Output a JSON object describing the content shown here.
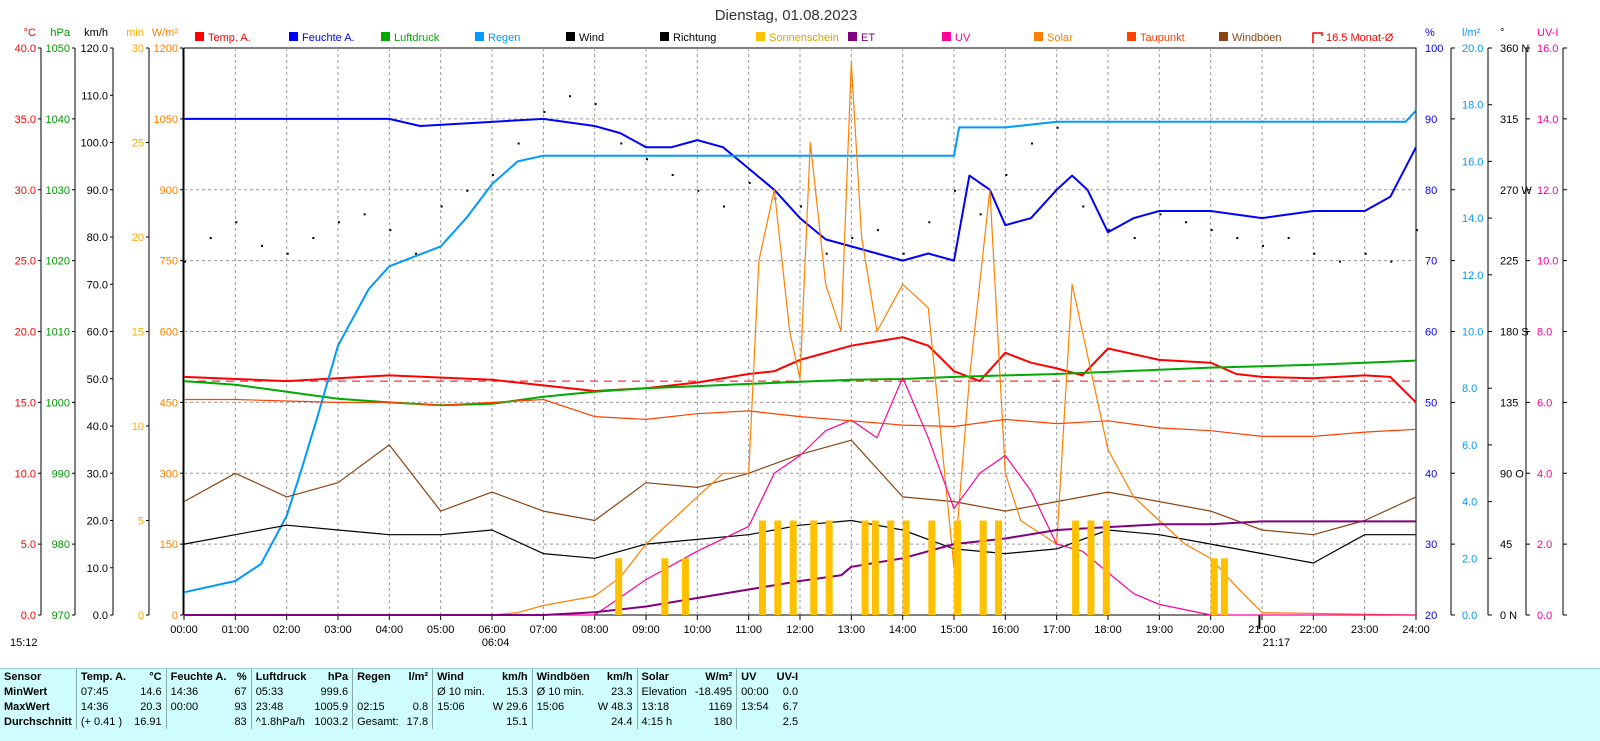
{
  "chart_data": {
    "type": "line",
    "title": "Dienstag, 01.08.2023",
    "axes": {
      "temp": {
        "unit": "°C",
        "ticks": [
          "40.0",
          "35.0",
          "30.0",
          "25.0",
          "20.0",
          "15.0",
          "10.0",
          "5.0",
          "0.0"
        ],
        "color": "#ff0000",
        "range": [
          0,
          40
        ]
      },
      "pressure": {
        "unit": "hPa",
        "ticks": [
          "1050",
          "1040",
          "1030",
          "1020",
          "1010",
          "1000",
          "990",
          "980",
          "970"
        ],
        "color": "#009900",
        "range": [
          970,
          1050
        ]
      },
      "wind": {
        "unit": "km/h",
        "ticks": [
          "120.0",
          "110.0",
          "100.0",
          "90.0",
          "80.0",
          "70.0",
          "60.0",
          "50.0",
          "40.0",
          "30.0",
          "20.0",
          "10.0",
          "0.0"
        ],
        "color": "#000000",
        "range": [
          0,
          120
        ]
      },
      "sunshine": {
        "unit": "min",
        "ticks": [
          "30",
          "25",
          "20",
          "15",
          "10",
          "5",
          "0"
        ],
        "color": "#ffaa00",
        "range": [
          0,
          30
        ]
      },
      "solar": {
        "unit": "W/m²",
        "ticks": [
          "1200",
          "1050",
          "900",
          "750",
          "600",
          "450",
          "300",
          "150",
          "0"
        ],
        "color": "#ff8000",
        "range": [
          0,
          1200
        ]
      },
      "humidity": {
        "unit": "%",
        "ticks": [
          "100",
          "90",
          "80",
          "70",
          "60",
          "50",
          "40",
          "30",
          "20"
        ],
        "color": "#0000ff",
        "range": [
          20,
          100
        ]
      },
      "rain": {
        "unit": "l/m²",
        "ticks": [
          "20.0",
          "18.0",
          "16.0",
          "14.0",
          "12.0",
          "10.0",
          "8.0",
          "6.0",
          "4.0",
          "2.0",
          "0.0"
        ],
        "color": "#0099ff",
        "range": [
          0,
          20
        ]
      },
      "direction": {
        "unit": "°",
        "ticks": [
          "360 N",
          "315",
          "270 W",
          "225",
          "180 S",
          "135",
          "90 O",
          "45",
          "0 N"
        ],
        "color": "#000000",
        "range": [
          0,
          360
        ]
      },
      "uv": {
        "unit": "UV-I",
        "ticks": [
          "16.0",
          "14.0",
          "12.0",
          "10.0",
          "8.0",
          "6.0",
          "4.0",
          "2.0",
          "0.0"
        ],
        "color": "#ff0099",
        "range": [
          0,
          16
        ]
      }
    },
    "x_ticks": [
      "00:00",
      "01:00",
      "02:00",
      "03:00",
      "04:00",
      "05:00",
      "06:00",
      "07:00",
      "08:00",
      "09:00",
      "10:00",
      "11:00",
      "12:00",
      "13:00",
      "14:00",
      "15:00",
      "16:00",
      "17:00",
      "18:00",
      "19:00",
      "20:00",
      "21:00",
      "22:00",
      "23:00",
      "24:00"
    ],
    "x_range_hours": [
      0,
      24
    ],
    "sunrise": "06:04",
    "sunset": "21:17",
    "current_time": "15:12",
    "legend": [
      {
        "label": "Temp. A.",
        "color": "#ff0000"
      },
      {
        "label": "Feuchte A.",
        "color": "#0000ff"
      },
      {
        "label": "Luftdruck",
        "color": "#00aa00"
      },
      {
        "label": "Regen",
        "color": "#0099ff"
      },
      {
        "label": "Wind",
        "color": "#000000"
      },
      {
        "label": "Richtung",
        "color": "#000000"
      },
      {
        "label": "Sonnenschein",
        "color": "#ffc000"
      },
      {
        "label": "ET",
        "color": "#800080"
      },
      {
        "label": "UV",
        "color": "#ff0099"
      },
      {
        "label": "Solar",
        "color": "#ff8000"
      },
      {
        "label": "Taupunkt",
        "color": "#ff4000"
      },
      {
        "label": "Windböen",
        "color": "#8b4513"
      },
      {
        "label": "16.5 Monat-Ø",
        "color": "#ff0000"
      }
    ],
    "monthly_avg_temp": 16.5,
    "series": [
      {
        "name": "Temp. A.",
        "axis": "temp",
        "color": "#ff0000",
        "x": [
          0,
          2,
          4,
          6,
          7,
          8,
          9,
          10,
          11,
          11.5,
          12,
          12.5,
          13,
          14,
          14.5,
          15,
          15.5,
          16,
          16.5,
          17,
          17.5,
          18,
          19,
          20,
          20.5,
          21,
          22,
          23,
          23.5,
          24
        ],
        "y": [
          16.8,
          16.5,
          16.9,
          16.6,
          16.2,
          15.8,
          16.0,
          16.4,
          17.0,
          17.2,
          18.0,
          18.5,
          19.0,
          19.6,
          19.0,
          17.2,
          16.5,
          18.5,
          17.8,
          17.4,
          16.9,
          18.8,
          18.0,
          17.8,
          17.0,
          16.8,
          16.7,
          16.9,
          16.8,
          15.0
        ]
      },
      {
        "name": "Feuchte A.",
        "axis": "humidity",
        "color": "#0000ff",
        "x": [
          0,
          4,
          4.6,
          7,
          8,
          8.5,
          9,
          9.5,
          10,
          10.5,
          11,
          11.5,
          12,
          12.5,
          13,
          13.5,
          14,
          14.5,
          15,
          15.3,
          15.7,
          16,
          16.5,
          17,
          17.3,
          17.6,
          18,
          18.5,
          19,
          20,
          21,
          22,
          23,
          23.5,
          24
        ],
        "y": [
          90,
          90,
          89,
          90,
          89,
          88,
          86,
          86,
          87,
          86,
          83,
          80,
          76,
          73,
          72,
          71,
          70,
          71,
          70,
          82,
          80,
          75,
          76,
          80,
          82,
          80,
          74,
          76,
          77,
          77,
          76,
          77,
          77,
          79,
          86
        ]
      },
      {
        "name": "Luftdruck",
        "axis": "pressure",
        "color": "#00aa00",
        "x": [
          0,
          1,
          2,
          3,
          4,
          5,
          6,
          7,
          8,
          9,
          10,
          11,
          12,
          13,
          14,
          15,
          16,
          17,
          18,
          19,
          20,
          21,
          22,
          23,
          24
        ],
        "y": [
          1003,
          1002.5,
          1001.5,
          1000.5,
          1000,
          999.6,
          999.8,
          1000.8,
          1001.5,
          1002,
          1002.3,
          1002.6,
          1002.9,
          1003.2,
          1003.3,
          1003.6,
          1003.8,
          1004.0,
          1004.3,
          1004.6,
          1004.9,
          1005.1,
          1005.3,
          1005.6,
          1005.9
        ]
      },
      {
        "name": "Regen",
        "axis": "rain",
        "color": "#0099ff",
        "x": [
          0,
          1,
          1.5,
          2,
          2.3,
          2.6,
          3,
          3.3,
          3.6,
          4,
          5,
          5.5,
          6,
          6.5,
          7,
          8,
          9,
          10,
          11,
          12,
          13,
          14,
          15,
          15.1,
          16,
          17,
          18,
          19,
          20,
          21,
          22,
          23,
          23.8,
          24
        ],
        "y": [
          0.8,
          1.2,
          1.8,
          3.5,
          5.2,
          7.0,
          9.5,
          10.5,
          11.5,
          12.3,
          13.0,
          14.0,
          15.2,
          16.0,
          16.2,
          16.2,
          16.2,
          16.2,
          16.2,
          16.2,
          16.2,
          16.2,
          16.2,
          17.2,
          17.2,
          17.4,
          17.4,
          17.4,
          17.4,
          17.4,
          17.4,
          17.4,
          17.4,
          17.8
        ]
      },
      {
        "name": "Wind",
        "axis": "wind",
        "color": "#000000",
        "x": [
          0,
          1,
          2,
          3,
          4,
          5,
          6,
          7,
          8,
          9,
          10,
          11,
          12,
          13,
          14,
          15,
          16,
          17,
          18,
          19,
          20,
          21,
          22,
          23,
          24
        ],
        "y": [
          15,
          17,
          19,
          18,
          17,
          17,
          18,
          13,
          12,
          15,
          16,
          17,
          19,
          20,
          18,
          14,
          13,
          14,
          18,
          17,
          15,
          13,
          11,
          17,
          17
        ]
      },
      {
        "name": "Windböen",
        "axis": "wind",
        "color": "#8b4513",
        "x": [
          0,
          1,
          2,
          3,
          4,
          5,
          6,
          7,
          8,
          9,
          10,
          11,
          12,
          13,
          14,
          15,
          16,
          17,
          18,
          19,
          20,
          21,
          22,
          23,
          24
        ],
        "y": [
          24,
          30,
          25,
          28,
          36,
          22,
          26,
          22,
          20,
          28,
          27,
          30,
          34,
          37,
          25,
          24,
          22,
          24,
          26,
          24,
          22,
          18,
          17,
          20,
          25
        ]
      },
      {
        "name": "Solar",
        "axis": "solar",
        "color": "#ff8000",
        "x": [
          0,
          6,
          6.5,
          7,
          8,
          8.5,
          9,
          9.5,
          10,
          10.5,
          11,
          11.2,
          11.5,
          11.8,
          12,
          12.2,
          12.5,
          12.8,
          13,
          13.2,
          13.5,
          14,
          14.5,
          15,
          15.3,
          15.7,
          16,
          16.3,
          17,
          17.3,
          17.6,
          18,
          18.5,
          19,
          19.5,
          20,
          20.5,
          21,
          24
        ],
        "y": [
          0,
          0,
          5,
          20,
          40,
          80,
          150,
          200,
          250,
          300,
          300,
          750,
          900,
          600,
          500,
          1000,
          700,
          600,
          1169,
          800,
          600,
          700,
          650,
          100,
          500,
          900,
          300,
          200,
          150,
          700,
          550,
          350,
          250,
          200,
          150,
          120,
          60,
          5,
          0
        ]
      },
      {
        "name": "UV",
        "axis": "uv",
        "color": "#ff0099",
        "x": [
          0,
          8,
          9,
          10,
          11,
          11.5,
          12,
          12.5,
          13,
          13.5,
          14,
          14.5,
          15,
          15.5,
          16,
          16.5,
          17,
          17.5,
          18,
          18.5,
          19,
          20,
          24
        ],
        "y": [
          0,
          0,
          1.0,
          1.8,
          2.5,
          4.0,
          4.5,
          5.2,
          5.5,
          5.0,
          6.7,
          5.0,
          3.0,
          4.0,
          4.5,
          3.5,
          2.0,
          1.8,
          1.2,
          0.6,
          0.3,
          0,
          0
        ]
      },
      {
        "name": "ET",
        "axis": "rain",
        "color": "#800080",
        "x": [
          0,
          7,
          8,
          9,
          10,
          11,
          12,
          12.8,
          13,
          14,
          15,
          16,
          17,
          18,
          19,
          20,
          21,
          22,
          23,
          24
        ],
        "y": [
          0,
          0,
          0.1,
          0.3,
          0.6,
          0.9,
          1.2,
          1.4,
          1.7,
          2.0,
          2.5,
          2.7,
          3.0,
          3.1,
          3.2,
          3.2,
          3.3,
          3.3,
          3.3,
          3.3
        ]
      },
      {
        "name": "Taupunkt",
        "axis": "temp",
        "color": "#ff4000",
        "x": [
          0,
          1,
          2,
          3,
          4,
          5,
          6,
          7,
          8,
          9,
          10,
          11,
          12,
          13,
          14,
          15,
          16,
          17,
          18,
          19,
          20,
          21,
          22,
          23,
          24
        ],
        "y": [
          15.2,
          15.2,
          15.1,
          15.0,
          15.0,
          14.8,
          15.0,
          15.2,
          14.0,
          13.8,
          14.2,
          14.4,
          14.0,
          13.7,
          13.4,
          13.3,
          13.8,
          13.5,
          13.7,
          13.2,
          13.0,
          12.6,
          12.6,
          12.9,
          13.1
        ]
      },
      {
        "name": "Sonnenschein",
        "axis": "sunshine",
        "color": "#ffc000",
        "type": "bar",
        "x": [
          8.4,
          9.3,
          9.7,
          11.2,
          11.5,
          11.8,
          12.2,
          12.5,
          13.2,
          13.4,
          13.7,
          14.0,
          14.5,
          15.0,
          15.5,
          15.8,
          17.3,
          17.6,
          17.9,
          20.0,
          20.2
        ],
        "y": [
          3,
          3,
          3,
          5,
          5,
          5,
          5,
          5,
          5,
          5,
          5,
          5,
          5,
          5,
          5,
          5,
          5,
          5,
          5,
          3,
          3
        ]
      }
    ],
    "wind_direction_points": {
      "axis": "direction",
      "x": [
        0,
        0.5,
        1,
        1.5,
        2,
        2.5,
        3,
        3.5,
        4,
        4.5,
        5,
        5.5,
        6,
        6.5,
        7,
        7.5,
        8,
        8.5,
        9,
        9.5,
        10,
        10.5,
        11,
        11.5,
        12,
        12.5,
        13,
        13.5,
        14,
        14.5,
        15,
        15.5,
        16,
        16.5,
        17,
        17.5,
        18,
        18.5,
        19,
        19.5,
        20,
        20.5,
        21,
        21.5,
        22,
        22.5,
        23,
        23.5,
        24
      ],
      "y": [
        225,
        240,
        250,
        235,
        230,
        240,
        250,
        255,
        245,
        230,
        260,
        270,
        280,
        300,
        320,
        330,
        325,
        300,
        290,
        280,
        270,
        260,
        275,
        265,
        260,
        230,
        240,
        245,
        230,
        250,
        270,
        255,
        280,
        300,
        310,
        260,
        245,
        240,
        255,
        250,
        245,
        240,
        235,
        240,
        230,
        225,
        230,
        225,
        245
      ]
    }
  },
  "summary": {
    "header": {
      "sensor": "Sensor",
      "temp": "Temp. A.",
      "temp_unit": "°C",
      "hum": "Feuchte A.",
      "hum_unit": "%",
      "press": "Luftdruck",
      "press_unit": "hPa",
      "rain": "Regen",
      "rain_unit": "l/m²",
      "wind": "Wind",
      "wind_unit": "km/h",
      "gust": "Windböen",
      "gust_unit": "km/h",
      "solar": "Solar",
      "solar_unit": "W/m²",
      "uv": "UV",
      "uv_unit": "UV-I"
    },
    "rows": [
      {
        "label": "MinWert",
        "temp_t": "07:45",
        "temp_v": "14.6",
        "hum_t": "14:36",
        "hum_v": "67",
        "press_t": "05:33",
        "press_v": "999.6",
        "rain_t": "",
        "rain_v": "",
        "wind_t": "Ø 10 min.",
        "wind_v": "15.3",
        "gust_t": "Ø 10 min.",
        "gust_v": "23.3",
        "solar_t": "Elevation",
        "solar_v": "-18.495",
        "uv_t": "00:00",
        "uv_v": "0.0"
      },
      {
        "label": "MaxWert",
        "temp_t": "14:36",
        "temp_v": "20.3",
        "hum_t": "00:00",
        "hum_v": "93",
        "press_t": "23:48",
        "press_v": "1005.9",
        "rain_t": "02:15",
        "rain_v": "0.8",
        "wind_t": "15:06",
        "wind_v": "W 29.6",
        "gust_t": "15:06",
        "gust_v": "W 48.3",
        "solar_t": "13:18",
        "solar_v": "1169",
        "uv_t": "13:54",
        "uv_v": "6.7"
      },
      {
        "label": "Durchschnitt",
        "temp_t": "(+ 0.41 )",
        "temp_v": "16.91",
        "hum_t": "",
        "hum_v": "83",
        "press_t": "^1.8hPa/h",
        "press_v": "1003.2",
        "rain_t": "Gesamt:",
        "rain_v": "17.8",
        "wind_t": "",
        "wind_v": "15.1",
        "gust_t": "",
        "gust_v": "24.4",
        "solar_t": "4:15 h",
        "solar_v": "180",
        "uv_t": "",
        "uv_v": "2.5"
      }
    ]
  }
}
